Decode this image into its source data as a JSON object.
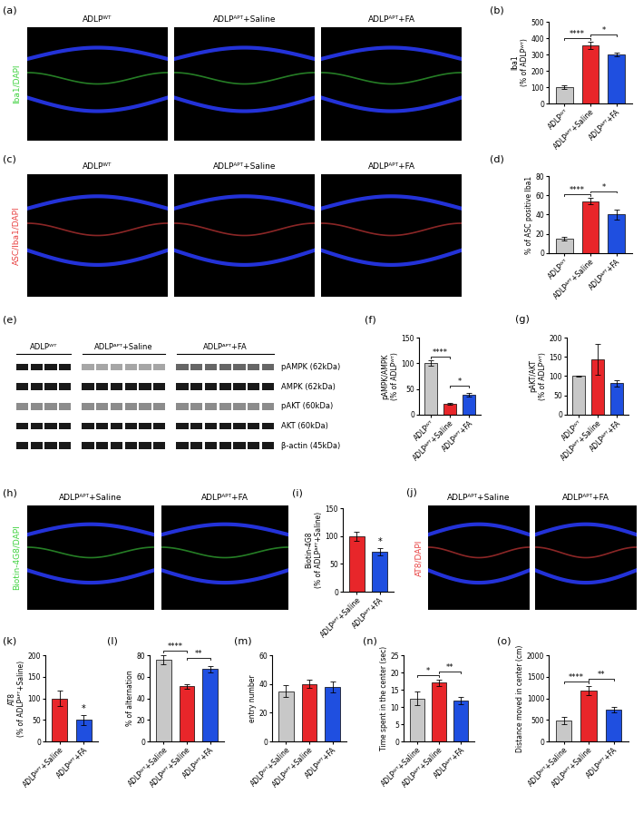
{
  "chart_data": [
    {
      "type": "bar",
      "title": "(b)",
      "y_label": "Iba1\n(% of ADLPᵂᵀ)",
      "categories": [
        "ADLPᵂᵀ",
        "ADLPᴬᴾᵀ+Saline",
        "ADLPᴬᴾᵀ+FA"
      ],
      "values": [
        100,
        355,
        300
      ],
      "errors": [
        10,
        20,
        12
      ],
      "colors": [
        "#c8c8c8",
        "#e8262a",
        "#1f4fe0"
      ],
      "ylim": [
        0,
        500
      ],
      "yticks": [
        0,
        100,
        200,
        300,
        400,
        500
      ],
      "annotations": [
        {
          "pair": [
            0,
            1
          ],
          "text": "****"
        },
        {
          "pair": [
            1,
            2
          ],
          "text": "*"
        }
      ]
    },
    {
      "type": "bar",
      "title": "(d)",
      "y_label": "% of ASC positive Iba1",
      "categories": [
        "ADLPᵂᵀ",
        "ADLPᴬᴾᵀ+Saline",
        "ADLPᴬᴾᵀ+FA"
      ],
      "values": [
        15,
        54,
        40
      ],
      "errors": [
        1.5,
        3,
        5
      ],
      "colors": [
        "#c8c8c8",
        "#e8262a",
        "#1f4fe0"
      ],
      "ylim": [
        0,
        80
      ],
      "yticks": [
        0,
        20,
        40,
        60,
        80
      ],
      "annotations": [
        {
          "pair": [
            0,
            1
          ],
          "text": "****"
        },
        {
          "pair": [
            1,
            2
          ],
          "text": "*"
        }
      ]
    },
    {
      "type": "bar",
      "title": "(f)",
      "y_label": "pAMPK/AMPK\n(% of ADLPᵂᵀ)",
      "categories": [
        "ADLPᵂᵀ",
        "ADLPᴬᴾᵀ+Saline",
        "ADLPᴬᴾᵀ+FA"
      ],
      "values": [
        100,
        21,
        39
      ],
      "errors": [
        5,
        2,
        4
      ],
      "colors": [
        "#c8c8c8",
        "#e8262a",
        "#1f4fe0"
      ],
      "ylim": [
        0,
        150
      ],
      "yticks": [
        0,
        50,
        100,
        150
      ],
      "annotations": [
        {
          "pair": [
            0,
            1
          ],
          "text": "****"
        },
        {
          "pair": [
            1,
            2
          ],
          "text": "*"
        }
      ]
    },
    {
      "type": "bar",
      "title": "(g)",
      "y_label": "pAKT/AKT\n(% of ADLPᵂᵀ)",
      "categories": [
        "ADLPᵂᵀ",
        "ADLPᴬᴾᵀ+Saline",
        "ADLPᴬᴾᵀ+FA"
      ],
      "values": [
        100,
        143,
        82
      ],
      "errors": [
        2,
        40,
        8
      ],
      "colors": [
        "#c8c8c8",
        "#e8262a",
        "#1f4fe0"
      ],
      "ylim": [
        0,
        200
      ],
      "yticks": [
        0,
        50,
        100,
        150,
        200
      ],
      "annotations": []
    },
    {
      "type": "bar",
      "title": "(i)",
      "y_label": "Biotin-4G8\n(% of ADLPᴬᴾᵀ+Saline)",
      "categories": [
        "ADLPᴬᴾᵀ+Saline",
        "ADLPᴬᴾᵀ+FA"
      ],
      "values": [
        100,
        72
      ],
      "errors": [
        8,
        6
      ],
      "colors": [
        "#e8262a",
        "#1f4fe0"
      ],
      "ylim": [
        0,
        150
      ],
      "yticks": [
        0,
        50,
        100,
        150
      ],
      "annotations": [
        {
          "index": 1,
          "text": "*"
        }
      ]
    },
    {
      "type": "bar",
      "title": "(k)",
      "y_label": "AT8\n(% of ADLPᴬᴾᵀ+Saline)",
      "categories": [
        "ADLPᴬᴾᵀ+Saline",
        "ADLPᴬᴾᵀ+FA"
      ],
      "values": [
        100,
        50
      ],
      "errors": [
        18,
        12
      ],
      "colors": [
        "#e8262a",
        "#1f4fe0"
      ],
      "ylim": [
        0,
        200
      ],
      "yticks": [
        0,
        50,
        100,
        150,
        200
      ],
      "annotations": [
        {
          "index": 1,
          "text": "*"
        }
      ]
    },
    {
      "type": "bar",
      "title": "(l)",
      "y_label": "% of alternation",
      "categories": [
        "ADLPᵂᵀ+Saline",
        "ADLPᴬᴾᵀ+Saline",
        "ADLPᴬᴾᵀ+FA"
      ],
      "values": [
        76,
        51,
        67
      ],
      "errors": [
        4,
        2,
        3
      ],
      "colors": [
        "#c8c8c8",
        "#e8262a",
        "#1f4fe0"
      ],
      "ylim": [
        0,
        80
      ],
      "yticks": [
        0,
        20,
        40,
        60,
        80
      ],
      "annotations": [
        {
          "pair": [
            0,
            1
          ],
          "text": "****"
        },
        {
          "pair": [
            1,
            2
          ],
          "text": "**"
        }
      ]
    },
    {
      "type": "bar",
      "title": "(m)",
      "y_label": "entry number",
      "categories": [
        "ADLPᵂᵀ+Saline",
        "ADLPᴬᴾᵀ+Saline",
        "ADLPᴬᴾᵀ+FA"
      ],
      "values": [
        35,
        40,
        38
      ],
      "errors": [
        4,
        3,
        4
      ],
      "colors": [
        "#c8c8c8",
        "#e8262a",
        "#1f4fe0"
      ],
      "ylim": [
        0,
        60
      ],
      "yticks": [
        0,
        20,
        40,
        60
      ],
      "annotations": []
    },
    {
      "type": "bar",
      "title": "(n)",
      "y_label": "Time spent in the center (sec)",
      "categories": [
        "ADLPᵂᵀ+Saline",
        "ADLPᴬᴾᵀ+Saline",
        "ADLPᴬᴾᵀ+FA"
      ],
      "values": [
        12.5,
        17,
        11.8
      ],
      "errors": [
        2,
        1,
        1
      ],
      "colors": [
        "#c8c8c8",
        "#e8262a",
        "#1f4fe0"
      ],
      "ylim": [
        0,
        25
      ],
      "yticks": [
        0,
        5,
        10,
        15,
        20,
        25
      ],
      "annotations": [
        {
          "pair": [
            0,
            1
          ],
          "text": "*"
        },
        {
          "pair": [
            1,
            2
          ],
          "text": "**"
        }
      ]
    },
    {
      "type": "bar",
      "title": "(o)",
      "y_label": "Distance moved in center (cm)",
      "categories": [
        "ADLPᵂᵀ+Saline",
        "ADLPᴬᴾᵀ+Saline",
        "ADLPᴬᴾᵀ+FA"
      ],
      "values": [
        480,
        1180,
        730
      ],
      "errors": [
        80,
        100,
        60
      ],
      "colors": [
        "#c8c8c8",
        "#e8262a",
        "#1f4fe0"
      ],
      "ylim": [
        0,
        2000
      ],
      "yticks": [
        0,
        500,
        1000,
        1500,
        2000
      ],
      "annotations": [
        {
          "pair": [
            0,
            1
          ],
          "text": "****"
        },
        {
          "pair": [
            1,
            2
          ],
          "text": "**"
        }
      ]
    }
  ],
  "image_panels": [
    {
      "title": "(a)",
      "stain": "Iba1/DAPI",
      "color": "#3fd23f",
      "columns": [
        "ADLPᵂᵀ",
        "ADLPᴬᴾᵀ+Saline",
        "ADLPᴬᴾᵀ+FA"
      ]
    },
    {
      "title": "(c)",
      "stain": "ASC/Iba1/DAPI",
      "color": "#e84040",
      "columns": [
        "ADLPᵂᵀ",
        "ADLPᴬᴾᵀ+Saline",
        "ADLPᴬᴾᵀ+FA"
      ]
    },
    {
      "title": "(h)",
      "stain": "Biotin-4G8/DAPI",
      "color": "#3fd23f",
      "columns": [
        "ADLPᴬᴾᵀ+Saline",
        "ADLPᴬᴾᵀ+FA"
      ]
    },
    {
      "title": "(j)",
      "stain": "AT8/DAPI",
      "color": "#e84040",
      "columns": [
        "ADLPᴬᴾᵀ+Saline",
        "ADLPᴬᴾᵀ+FA"
      ]
    }
  ],
  "blot": {
    "title": "(e)",
    "groups": [
      "ADLPᵂᵀ",
      "ADLPᴬᴾᵀ+Saline",
      "ADLPᴬᴾᵀ+FA"
    ],
    "rows": [
      "pAMPK (62kDa)",
      "AMPK (62kDa)",
      "pAKT (60kDa)",
      "AKT (60kDa)",
      "β-actin (45kDa)"
    ]
  }
}
